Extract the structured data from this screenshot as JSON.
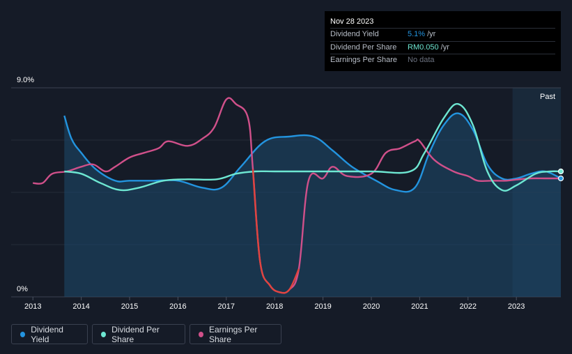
{
  "tooltip": {
    "date": "Nov 28 2023",
    "rows": [
      {
        "label": "Dividend Yield",
        "value": "5.1%",
        "unit": "/yr",
        "color": "#2394df"
      },
      {
        "label": "Dividend Per Share",
        "value": "RM0.050",
        "unit": "/yr",
        "color": "#6ee7d2"
      },
      {
        "label": "Earnings Per Share",
        "value": "No data",
        "unit": "",
        "color": "#6c7280"
      }
    ]
  },
  "chart_data": {
    "type": "line",
    "title": "",
    "ylim": [
      0,
      9.0
    ],
    "y_tick_labels": [
      "9.0%",
      "0%"
    ],
    "x_ticks": [
      2013,
      2014,
      2015,
      2016,
      2017,
      2018,
      2019,
      2020,
      2021,
      2022,
      2023
    ],
    "x_range": [
      2012.55,
      2023.92
    ],
    "past_label": "Past",
    "past_start": 2022.92,
    "series": [
      {
        "name": "Dividend Yield",
        "color": "#2394df",
        "points": [
          [
            2013.65,
            7.8
          ],
          [
            2013.8,
            6.8
          ],
          [
            2014.0,
            6.2
          ],
          [
            2014.3,
            5.5
          ],
          [
            2014.7,
            5.0
          ],
          [
            2015.0,
            5.0
          ],
          [
            2015.5,
            5.0
          ],
          [
            2016.0,
            5.0
          ],
          [
            2016.5,
            4.7
          ],
          [
            2016.9,
            4.7
          ],
          [
            2017.3,
            5.6
          ],
          [
            2017.8,
            6.7
          ],
          [
            2018.3,
            6.9
          ],
          [
            2018.8,
            6.9
          ],
          [
            2019.2,
            6.3
          ],
          [
            2019.6,
            5.6
          ],
          [
            2020.1,
            5.0
          ],
          [
            2020.5,
            4.6
          ],
          [
            2020.9,
            4.7
          ],
          [
            2021.2,
            6.2
          ],
          [
            2021.5,
            7.4
          ],
          [
            2021.8,
            7.9
          ],
          [
            2022.1,
            7.2
          ],
          [
            2022.4,
            5.7
          ],
          [
            2022.7,
            5.1
          ],
          [
            2023.0,
            5.1
          ],
          [
            2023.3,
            5.3
          ],
          [
            2023.6,
            5.4
          ],
          [
            2023.92,
            5.1
          ]
        ]
      },
      {
        "name": "Dividend Per Share",
        "color": "#6ee7d2",
        "points": [
          [
            2013.65,
            5.4
          ],
          [
            2014.0,
            5.3
          ],
          [
            2014.4,
            4.9
          ],
          [
            2014.8,
            4.6
          ],
          [
            2015.2,
            4.7
          ],
          [
            2015.7,
            5.0
          ],
          [
            2016.2,
            5.06
          ],
          [
            2016.8,
            5.06
          ],
          [
            2017.2,
            5.3
          ],
          [
            2017.6,
            5.4
          ],
          [
            2018.0,
            5.4
          ],
          [
            2019.0,
            5.4
          ],
          [
            2020.0,
            5.4
          ],
          [
            2020.8,
            5.4
          ],
          [
            2021.1,
            6.2
          ],
          [
            2021.5,
            7.7
          ],
          [
            2021.8,
            8.3
          ],
          [
            2022.1,
            7.4
          ],
          [
            2022.4,
            5.4
          ],
          [
            2022.7,
            4.6
          ],
          [
            2023.0,
            4.8
          ],
          [
            2023.4,
            5.3
          ],
          [
            2023.7,
            5.4
          ],
          [
            2023.92,
            5.4
          ]
        ]
      },
      {
        "name": "Earnings Per Share",
        "color": "#d0508a",
        "points": [
          [
            2013.0,
            4.9
          ],
          [
            2013.2,
            4.9
          ],
          [
            2013.4,
            5.3
          ],
          [
            2013.7,
            5.4
          ],
          [
            2014.0,
            5.6
          ],
          [
            2014.25,
            5.7
          ],
          [
            2014.5,
            5.4
          ],
          [
            2014.7,
            5.6
          ],
          [
            2015.0,
            6.0
          ],
          [
            2015.3,
            6.2
          ],
          [
            2015.6,
            6.4
          ],
          [
            2015.8,
            6.7
          ],
          [
            2016.2,
            6.5
          ],
          [
            2016.5,
            6.8
          ],
          [
            2016.75,
            7.3
          ],
          [
            2017.0,
            8.5
          ],
          [
            2017.2,
            8.3
          ],
          [
            2017.45,
            7.7
          ],
          [
            2017.55,
            5.5
          ],
          [
            2017.7,
            1.5
          ],
          [
            2017.9,
            0.5
          ],
          [
            2018.1,
            0.2
          ],
          [
            2018.3,
            0.3
          ],
          [
            2018.5,
            1.2
          ],
          [
            2018.7,
            5.0
          ],
          [
            2019.0,
            5.1
          ],
          [
            2019.2,
            5.6
          ],
          [
            2019.5,
            5.2
          ],
          [
            2020.0,
            5.3
          ],
          [
            2020.3,
            6.2
          ],
          [
            2020.6,
            6.4
          ],
          [
            2020.9,
            6.7
          ],
          [
            2021.0,
            6.7
          ],
          [
            2021.3,
            5.9
          ],
          [
            2021.7,
            5.4
          ],
          [
            2022.0,
            5.2
          ],
          [
            2022.2,
            5.0
          ],
          [
            2022.5,
            5.0
          ],
          [
            2022.8,
            5.0
          ],
          [
            2023.0,
            5.05
          ],
          [
            2023.3,
            5.1
          ],
          [
            2023.6,
            5.1
          ],
          [
            2023.92,
            5.1
          ]
        ]
      }
    ],
    "legend": [
      "Dividend Yield",
      "Dividend Per Share",
      "Earnings Per Share"
    ]
  }
}
